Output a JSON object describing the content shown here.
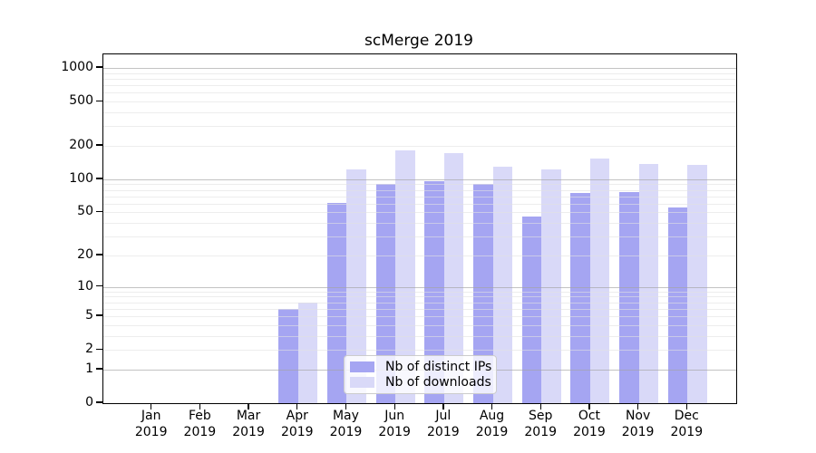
{
  "title": "scMerge 2019",
  "legend": {
    "items": [
      {
        "label": "Nb of distinct IPs",
        "color": "#a5a5f2"
      },
      {
        "label": "Nb of downloads",
        "color": "#d9d9f8"
      }
    ]
  },
  "chart_data": {
    "type": "bar",
    "title": "scMerge 2019",
    "categories": [
      "Jan 2019",
      "Feb 2019",
      "Mar 2019",
      "Apr 2019",
      "May 2019",
      "Jun 2019",
      "Jul 2019",
      "Aug 2019",
      "Sep 2019",
      "Oct 2019",
      "Nov 2019",
      "Dec 2019"
    ],
    "series": [
      {
        "name": "Nb of distinct IPs",
        "color": "#a5a5f2",
        "values": [
          0,
          0,
          0,
          6,
          61,
          91,
          96,
          91,
          46,
          75,
          77,
          55
        ]
      },
      {
        "name": "Nb of downloads",
        "color": "#d9d9f8",
        "values": [
          0,
          0,
          0,
          7,
          122,
          183,
          172,
          131,
          122,
          155,
          137,
          136
        ]
      }
    ],
    "xlabel": "",
    "ylabel": "",
    "yscale": "log10(1+x)",
    "ylim": [
      0,
      1325
    ],
    "y_ticks": [
      0,
      1,
      2,
      5,
      10,
      20,
      50,
      100,
      200,
      500,
      1000
    ],
    "y_major_gridlines": [
      1,
      10,
      100,
      1000
    ],
    "y_minor_gridlines": [
      2,
      3,
      4,
      5,
      6,
      7,
      8,
      9,
      20,
      30,
      40,
      50,
      60,
      70,
      80,
      90,
      200,
      300,
      400,
      500,
      600,
      700,
      800,
      900
    ],
    "grid": true,
    "grid_on_top_of_bars": true,
    "legend_position": "lower center inside"
  }
}
